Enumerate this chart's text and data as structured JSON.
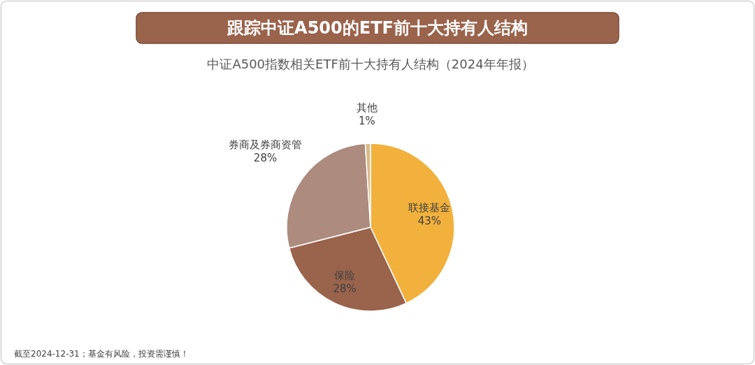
{
  "chart_data": {
    "type": "pie",
    "title": "跟踪中证A500的ETF前十大持有人结构",
    "subtitle": "中证A500指数相关ETF前十大持有人结构（2024年年报）",
    "categories": [
      "联接基金",
      "保险",
      "券商及券商资管",
      "其他"
    ],
    "values": [
      43,
      28,
      28,
      1
    ],
    "value_labels": [
      "43%",
      "28%",
      "28%",
      "1%"
    ],
    "colors": [
      "#f2b13c",
      "#9a634c",
      "#ad8b7f",
      "#d9b98e"
    ],
    "annotations": [
      "截至2024-12-31；基金有风险，投资需谨慎！"
    ]
  }
}
